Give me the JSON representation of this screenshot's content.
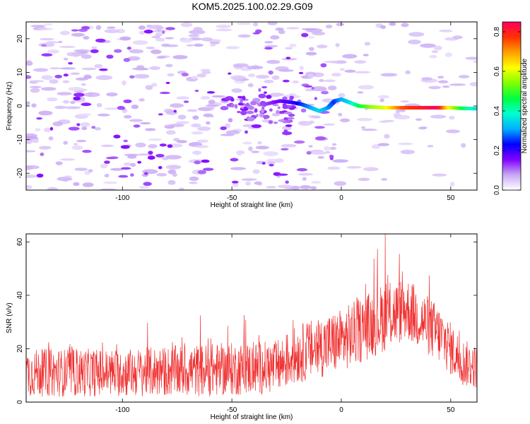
{
  "title": "KOM5.2025.100.02.29.G09",
  "chart_data": [
    {
      "type": "heatmap",
      "xlabel": "Height of straight line (km)",
      "ylabel": "Frequency (Hz)",
      "xlim": [
        -144,
        62
      ],
      "ylim": [
        -25,
        25
      ],
      "xticks": [
        -100,
        -50,
        0,
        50
      ],
      "yticks": [
        -20,
        -10,
        0,
        10,
        20
      ],
      "grid": false,
      "colorbar": {
        "label": "Normalized spectral amplitude",
        "range": [
          0,
          0.85
        ],
        "ticks": [
          0.0,
          0.2,
          0.4,
          0.6,
          0.8
        ],
        "colormap": [
          "#ffffff",
          "#c8a8f5",
          "#8000ff",
          "#0000ff",
          "#00b0ff",
          "#00ffd0",
          "#00ff40",
          "#80ff00",
          "#ffff00",
          "#ffa000",
          "#ff3000",
          "#ff0060"
        ]
      },
      "ridge": [
        {
          "x": -35,
          "y": 0.5,
          "v": 0.12
        },
        {
          "x": -28,
          "y": 1.5,
          "v": 0.16
        },
        {
          "x": -22,
          "y": 1.0,
          "v": 0.2
        },
        {
          "x": -18,
          "y": 0.5,
          "v": 0.25
        },
        {
          "x": -14,
          "y": -0.5,
          "v": 0.3
        },
        {
          "x": -10,
          "y": -1.5,
          "v": 0.35
        },
        {
          "x": -6,
          "y": -0.5,
          "v": 0.3
        },
        {
          "x": -3,
          "y": 1.5,
          "v": 0.25
        },
        {
          "x": 0,
          "y": 2.0,
          "v": 0.3
        },
        {
          "x": 4,
          "y": 1.0,
          "v": 0.35
        },
        {
          "x": 8,
          "y": 0.0,
          "v": 0.45
        },
        {
          "x": 14,
          "y": -0.3,
          "v": 0.55
        },
        {
          "x": 20,
          "y": -0.5,
          "v": 0.6
        },
        {
          "x": 28,
          "y": -0.5,
          "v": 0.75
        },
        {
          "x": 36,
          "y": -0.5,
          "v": 0.8
        },
        {
          "x": 44,
          "y": -0.5,
          "v": 0.85
        },
        {
          "x": 50,
          "y": -0.5,
          "v": 0.6
        },
        {
          "x": 56,
          "y": -0.7,
          "v": 0.45
        },
        {
          "x": 62,
          "y": -0.8,
          "v": 0.35
        }
      ]
    },
    {
      "type": "line",
      "xlabel": "Height of straight line (km)",
      "ylabel": "SNR (v/v)",
      "xlim": [
        -144,
        62
      ],
      "ylim": [
        0,
        63
      ],
      "xticks": [
        -100,
        -50,
        0,
        50
      ],
      "yticks": [
        0,
        20,
        40,
        60
      ],
      "grid": false,
      "color": "#f03030",
      "envelope": [
        {
          "x": -144,
          "mean": 11,
          "spread": 9
        },
        {
          "x": -100,
          "mean": 11,
          "spread": 9
        },
        {
          "x": -60,
          "mean": 12,
          "spread": 10
        },
        {
          "x": -30,
          "mean": 13,
          "spread": 10
        },
        {
          "x": -20,
          "mean": 18,
          "spread": 11
        },
        {
          "x": 0,
          "mean": 23,
          "spread": 12
        },
        {
          "x": 20,
          "mean": 32,
          "spread": 13
        },
        {
          "x": 30,
          "mean": 35,
          "spread": 12
        },
        {
          "x": 45,
          "mean": 25,
          "spread": 11
        },
        {
          "x": 55,
          "mean": 15,
          "spread": 9
        },
        {
          "x": 62,
          "mean": 13,
          "spread": 8
        }
      ],
      "peak": {
        "x": 20,
        "y": 63
      }
    }
  ]
}
